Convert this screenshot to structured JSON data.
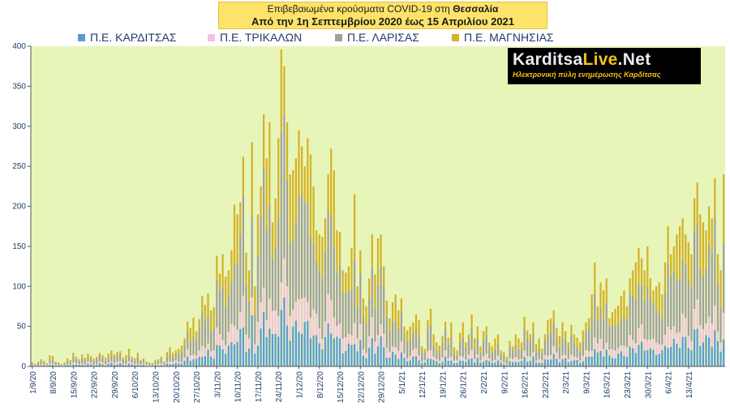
{
  "title": {
    "line1_prefix": "Επιβεβαιωμένα κρούσματα COVID-19 στη ",
    "line1_region": "Θεσσαλία",
    "line2": "Από την 1η Σεπτεμβρίου 2020 έως 15 Απριλίου 2021"
  },
  "logo": {
    "brand_main": "Karditsa",
    "brand_accent": "Live",
    "brand_suffix": ".Net",
    "tagline": "Ηλεκτρονική πύλη ενημέρωσης Καρδίτσας"
  },
  "chart_data": {
    "type": "bar",
    "stacked": true,
    "x_tick_labels": [
      "1/9/20",
      "8/9/20",
      "15/9/20",
      "22/9/20",
      "29/9/20",
      "6/10/20",
      "13/10/20",
      "20/10/20",
      "27/10/20",
      "3/11/20",
      "10/11/20",
      "17/11/20",
      "24/11/20",
      "1/12/20",
      "8/12/20",
      "15/12/20",
      "22/12/20",
      "29/12/20",
      "5/1/21",
      "12/1/21",
      "19/1/21",
      "26/1/21",
      "2/2/21",
      "9/2/21",
      "16/2/21",
      "23/2/21",
      "2/3/21",
      "9/3/21",
      "16/3/21",
      "23/3/21",
      "30/3/21",
      "6/4/21",
      "13/4/21"
    ],
    "ylim": [
      0,
      400
    ],
    "y_ticks": [
      0,
      50,
      100,
      150,
      200,
      250,
      300,
      350,
      400
    ],
    "grid": false,
    "legend_position": "top",
    "days": 227,
    "series": [
      {
        "name": "Π.Ε. ΚΑΡΔΙΤΣΑΣ",
        "color": "#5b9bd5"
      },
      {
        "name": "Π.Ε. ΤΡΙΚΑΛΩΝ",
        "color": "#f4c2e0"
      },
      {
        "name": "Π.Ε. ΛΑΡΙΣΑΣ",
        "color": "#a0a0a0"
      },
      {
        "name": "Π.Ε. ΜΑΓΝΗΣΙΑΣ",
        "color": "#d4b227"
      }
    ],
    "daily_totals": [
      5,
      3,
      6,
      9,
      7,
      4,
      14,
      13,
      6,
      5,
      3,
      5,
      10,
      8,
      17,
      12,
      9,
      15,
      11,
      16,
      13,
      10,
      12,
      17,
      14,
      11,
      16,
      20,
      15,
      18,
      19,
      11,
      14,
      22,
      12,
      10,
      17,
      8,
      10,
      6,
      5,
      4,
      8,
      9,
      12,
      6,
      18,
      24,
      17,
      20,
      22,
      26,
      35,
      56,
      48,
      61,
      44,
      59,
      88,
      77,
      91,
      70,
      74,
      138,
      116,
      140,
      112,
      120,
      145,
      202,
      190,
      205,
      262,
      142,
      120,
      280,
      100,
      190,
      225,
      315,
      260,
      305,
      180,
      210,
      285,
      396,
      375,
      305,
      240,
      245,
      260,
      295,
      275,
      250,
      285,
      265,
      225,
      170,
      165,
      162,
      185,
      240,
      272,
      245,
      170,
      168,
      120,
      117,
      125,
      148,
      215,
      100,
      145,
      85,
      75,
      110,
      165,
      115,
      160,
      165,
      125,
      82,
      60,
      80,
      90,
      70,
      85,
      50,
      45,
      50,
      55,
      65,
      58,
      25,
      22,
      58,
      72,
      40,
      30,
      26,
      38,
      56,
      36,
      55,
      24,
      20,
      42,
      55,
      30,
      40,
      65,
      35,
      50,
      25,
      44,
      50,
      30,
      25,
      35,
      40,
      20,
      18,
      12,
      32,
      25,
      40,
      35,
      30,
      62,
      45,
      40,
      55,
      28,
      35,
      22,
      40,
      58,
      60,
      70,
      48,
      38,
      55,
      44,
      30,
      52,
      40,
      36,
      30,
      45,
      55,
      60,
      90,
      130,
      75,
      105,
      95,
      110,
      60,
      68,
      72,
      76,
      88,
      95,
      75,
      110,
      120,
      130,
      148,
      135,
      120,
      150,
      110,
      95,
      100,
      105,
      90,
      130,
      175,
      140,
      150,
      165,
      175,
      185,
      165,
      155,
      140,
      210,
      230,
      190,
      180,
      170,
      200,
      185,
      235,
      140,
      120,
      240
    ],
    "shares": [
      0.18,
      0.12,
      0.42,
      0.28
    ]
  }
}
